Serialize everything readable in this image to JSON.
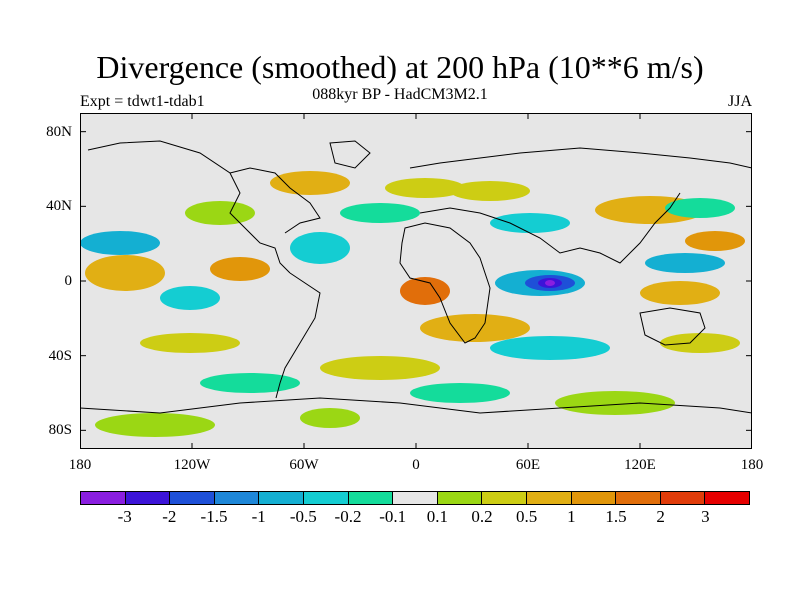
{
  "title": "Divergence (smoothed) at 200 hPa (10**6 m/s)",
  "subtitle": "088kyr BP - HadCM3M2.1",
  "experiment": "Expt = tdwt1-tdab1",
  "season": "JJA",
  "map": {
    "projection": "cylindrical equidistant",
    "lon_range": [
      -180,
      180
    ],
    "lat_range": [
      -90,
      90
    ],
    "background_color": "#e6e6e6",
    "lat_labels": [
      "80N",
      "40N",
      "0",
      "40S",
      "80S"
    ],
    "lat_values": [
      80,
      40,
      0,
      -40,
      -80
    ],
    "lon_labels": [
      "180",
      "120W",
      "60W",
      "0",
      "60E",
      "120E",
      "180"
    ],
    "lon_values": [
      -180,
      -120,
      -60,
      0,
      60,
      120,
      180
    ],
    "notable_feature": "strong convergence minimum near 70E, 0N (below -3)"
  },
  "colorbar": {
    "colors": [
      "#8a1ee0",
      "#3c14d8",
      "#1e50d8",
      "#1e87d8",
      "#14afd2",
      "#14cdd2",
      "#14dc9b",
      "#e6e6e6",
      "#9bd714",
      "#cdcd14",
      "#e1af14",
      "#e1960a",
      "#e16e0a",
      "#e13c0a",
      "#e60000"
    ],
    "levels": [
      "-3",
      "-2",
      "-1.5",
      "-1",
      "-0.5",
      "-0.2",
      "-0.1",
      "0.1",
      "0.2",
      "0.5",
      "1",
      "1.5",
      "2",
      "3"
    ]
  }
}
